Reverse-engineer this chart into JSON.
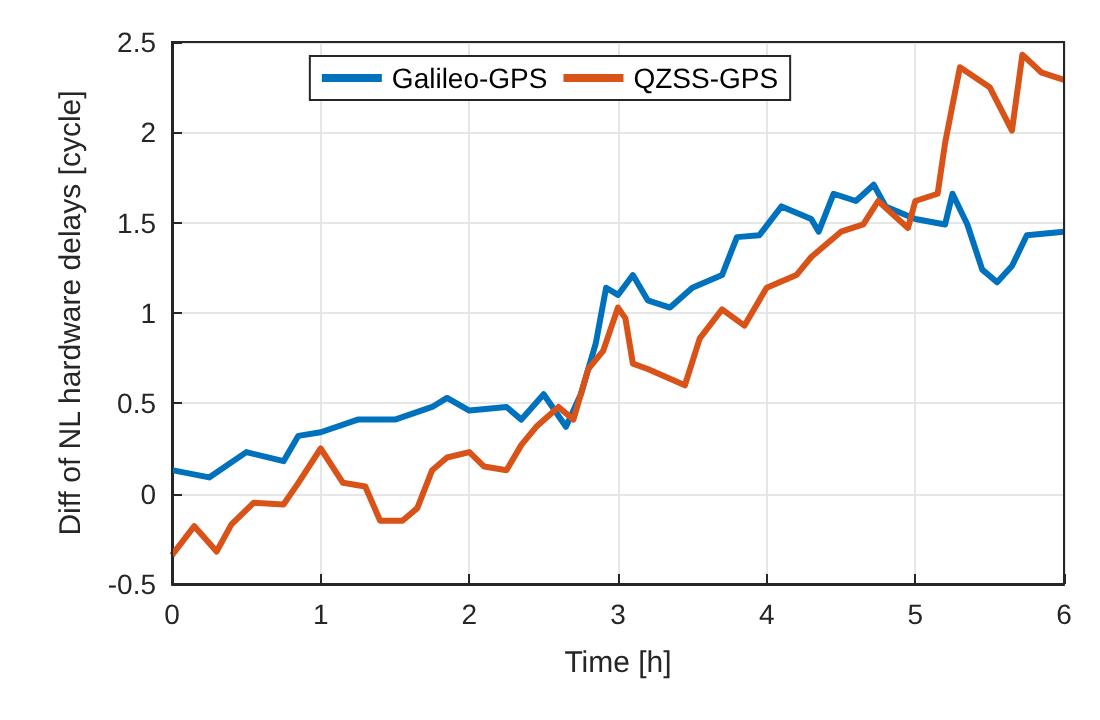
{
  "chart_data": {
    "type": "line",
    "xlabel": "Time [h]",
    "ylabel": "Diff of NL hardware delays [cycle]",
    "xlim": [
      0,
      6
    ],
    "xticks": [
      0,
      1,
      2,
      3,
      4,
      5,
      6
    ],
    "ylim": [
      -0.5,
      2.5
    ],
    "yticks": [
      -0.5,
      0,
      0.5,
      1,
      1.5,
      2,
      2.5
    ],
    "grid": true,
    "legend": "top",
    "marker": "none",
    "line_style": "solid",
    "series": [
      {
        "name": "Galileo-GPS",
        "color": "#0072bd",
        "x": [
          0,
          0.25,
          0.5,
          0.75,
          0.85,
          1,
          1.25,
          1.5,
          1.75,
          1.85,
          2,
          2.25,
          2.35,
          2.5,
          2.65,
          2.75,
          2.85,
          2.92,
          3,
          3.1,
          3.2,
          3.35,
          3.5,
          3.7,
          3.8,
          3.95,
          4.1,
          4.3,
          4.35,
          4.45,
          4.6,
          4.72,
          4.8,
          5,
          5.2,
          5.25,
          5.35,
          5.45,
          5.55,
          5.65,
          5.75,
          6
        ],
        "values": [
          0.13,
          0.09,
          0.23,
          0.18,
          0.32,
          0.34,
          0.41,
          0.41,
          0.48,
          0.53,
          0.46,
          0.48,
          0.41,
          0.55,
          0.37,
          0.55,
          0.83,
          1.14,
          1.1,
          1.21,
          1.07,
          1.03,
          1.14,
          1.21,
          1.42,
          1.43,
          1.59,
          1.52,
          1.45,
          1.66,
          1.62,
          1.71,
          1.59,
          1.52,
          1.49,
          1.66,
          1.49,
          1.24,
          1.17,
          1.26,
          1.43,
          1.45
        ]
      },
      {
        "name": "QZSS-GPS",
        "color": "#d95319",
        "x": [
          0,
          0.15,
          0.3,
          0.4,
          0.55,
          0.75,
          0.85,
          1,
          1.15,
          1.3,
          1.4,
          1.55,
          1.65,
          1.75,
          1.85,
          2,
          2.1,
          2.25,
          2.35,
          2.45,
          2.6,
          2.7,
          2.8,
          2.9,
          3,
          3.05,
          3.1,
          3.2,
          3.45,
          3.55,
          3.7,
          3.85,
          4,
          4.2,
          4.3,
          4.5,
          4.65,
          4.75,
          4.95,
          5,
          5.15,
          5.2,
          5.3,
          5.5,
          5.65,
          5.72,
          5.85,
          6
        ],
        "values": [
          -0.34,
          -0.18,
          -0.32,
          -0.17,
          -0.05,
          -0.06,
          0.06,
          0.25,
          0.06,
          0.04,
          -0.15,
          -0.15,
          -0.08,
          0.13,
          0.2,
          0.23,
          0.15,
          0.13,
          0.27,
          0.37,
          0.48,
          0.41,
          0.69,
          0.79,
          1.03,
          0.97,
          0.72,
          0.69,
          0.6,
          0.86,
          1.02,
          0.93,
          1.14,
          1.21,
          1.31,
          1.45,
          1.49,
          1.62,
          1.47,
          1.62,
          1.66,
          1.94,
          2.36,
          2.25,
          2.01,
          2.43,
          2.33,
          2.29
        ]
      }
    ]
  }
}
